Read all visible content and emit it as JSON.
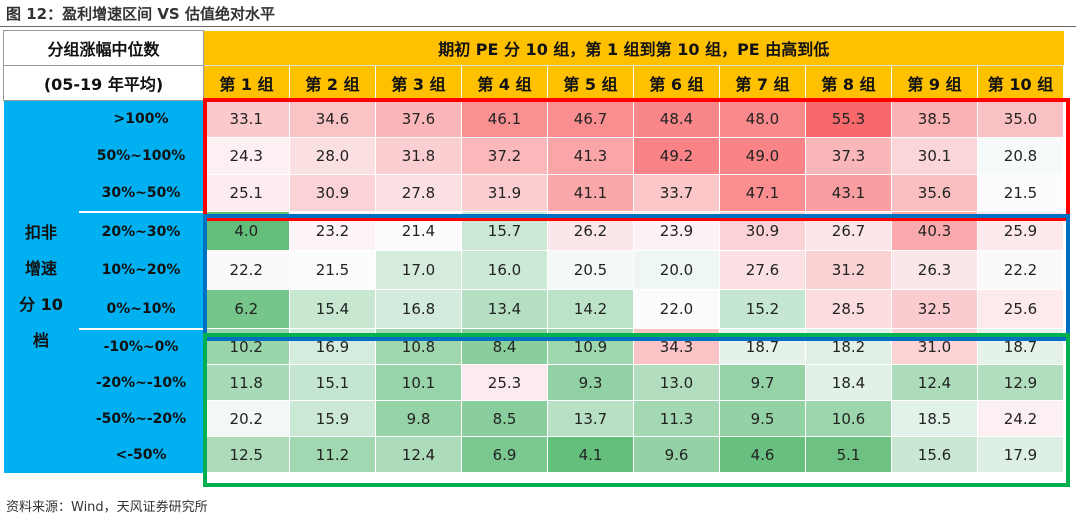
{
  "figure_title": "图 12：盈利增速区间 VS 估值绝对水平",
  "source": "资料来源：Wind，天风证券研究所",
  "header": {
    "left_line1": "分组涨幅中位数",
    "left_line2": "(05-19 年平均)",
    "top": "期初 PE 分 10 组，第 1 组到第 10 组，PE 由高到低",
    "columns": [
      "第 1 组",
      "第 2 组",
      "第 3 组",
      "第 4 组",
      "第 5 组",
      "第 6 组",
      "第 7 组",
      "第 8 组",
      "第 9 组",
      "第 10 组"
    ]
  },
  "side_label": [
    "扣非",
    "增速",
    "分 10",
    "档"
  ],
  "rows": [
    {
      "label": ">100%",
      "values": [
        "33.1",
        "34.6",
        "37.6",
        "46.1",
        "46.7",
        "48.4",
        "48.0",
        "55.3",
        "38.5",
        "35.0"
      ]
    },
    {
      "label": "50%~100%",
      "values": [
        "24.3",
        "28.0",
        "31.8",
        "37.2",
        "41.3",
        "49.2",
        "49.0",
        "37.3",
        "30.1",
        "20.8"
      ]
    },
    {
      "label": "30%~50%",
      "values": [
        "25.1",
        "30.9",
        "27.8",
        "31.9",
        "41.1",
        "33.7",
        "47.1",
        "43.1",
        "35.6",
        "21.5"
      ]
    },
    {
      "label": "20%~30%",
      "values": [
        "4.0",
        "23.2",
        "21.4",
        "15.7",
        "26.2",
        "23.9",
        "30.9",
        "26.7",
        "40.3",
        "25.9"
      ]
    },
    {
      "label": "10%~20%",
      "values": [
        "22.2",
        "21.5",
        "17.0",
        "16.0",
        "20.5",
        "20.0",
        "27.6",
        "31.2",
        "26.3",
        "22.2"
      ]
    },
    {
      "label": "0%~10%",
      "values": [
        "6.2",
        "15.4",
        "16.8",
        "13.4",
        "14.2",
        "22.0",
        "15.2",
        "28.5",
        "32.5",
        "25.6"
      ]
    },
    {
      "label": "-10%~0%",
      "values": [
        "10.2",
        "16.9",
        "10.8",
        "8.4",
        "10.9",
        "34.3",
        "18.7",
        "18.2",
        "31.0",
        "18.7"
      ]
    },
    {
      "label": "-20%~-10%",
      "values": [
        "11.8",
        "15.1",
        "10.1",
        "25.3",
        "9.3",
        "13.0",
        "9.7",
        "18.4",
        "12.4",
        "12.9"
      ]
    },
    {
      "label": "-50%~-20%",
      "values": [
        "20.2",
        "15.9",
        "9.8",
        "8.5",
        "13.7",
        "11.3",
        "9.5",
        "10.6",
        "18.5",
        "24.2"
      ]
    },
    {
      "label": "<-50%",
      "values": [
        "12.5",
        "11.2",
        "12.4",
        "6.9",
        "4.1",
        "9.6",
        "4.6",
        "5.1",
        "15.6",
        "17.9"
      ]
    }
  ],
  "colors": {
    "header_fill": "#ffc000",
    "label_fill": "#00b0f0",
    "heat_high": "#f8696b",
    "heat_mid": "#fcfcff",
    "heat_low": "#63be7b",
    "box_top": "#ff0000",
    "box_middle": "#0070c0",
    "box_bottom": "#00b050"
  }
}
